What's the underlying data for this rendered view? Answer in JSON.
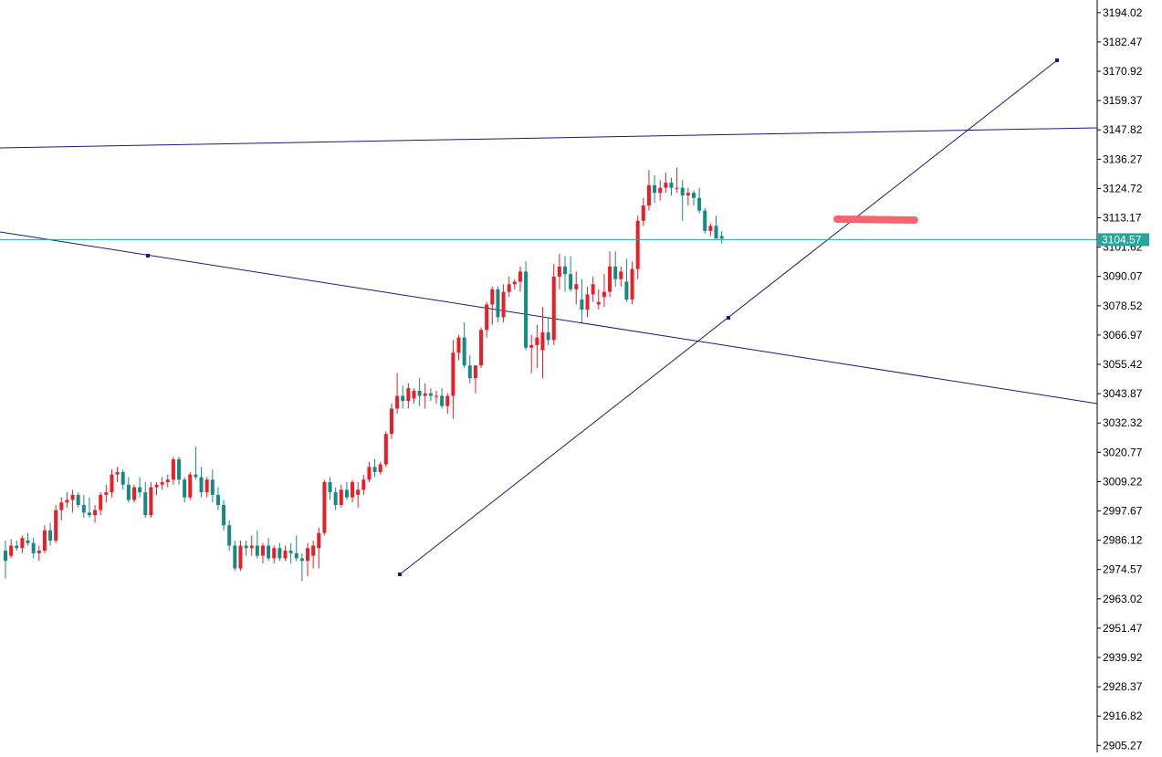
{
  "chart_data": {
    "type": "candlestick",
    "y_ticks": [
      "3194.02",
      "3182.47",
      "3170.92",
      "3159.37",
      "3147.82",
      "3136.27",
      "3124.72",
      "3113.17",
      "3101.62",
      "3090.07",
      "3078.52",
      "3066.97",
      "3055.42",
      "3043.87",
      "3032.32",
      "3020.77",
      "3009.22",
      "2997.67",
      "2986.12",
      "2974.57",
      "2963.02",
      "2951.47",
      "2939.92",
      "2928.37",
      "2916.82",
      "2905.27"
    ],
    "ylim": [
      2902.5,
      3199.0
    ],
    "current_price": "3104.57",
    "grid": false,
    "colors": {
      "bull": "#ee1c24",
      "bear": "#138a82",
      "trendline": "#1a1a7a",
      "price_line": "#2ba5a5",
      "price_tag": "#26a69a",
      "annotation": "#f8636f",
      "axis": "#000000"
    },
    "candles": [
      [
        2982.0,
        2986.0,
        2971.0,
        2978.0
      ],
      [
        2980.0,
        2986.5,
        2979.0,
        2984.0
      ],
      [
        2984.0,
        2986.0,
        2982.0,
        2983.0
      ],
      [
        2983.0,
        2988.0,
        2981.0,
        2987.0
      ],
      [
        2986.0,
        2989.0,
        2984.0,
        2985.0
      ],
      [
        2985.0,
        2987.0,
        2979.0,
        2981.0
      ],
      [
        2981.0,
        2984.0,
        2978.0,
        2982.0
      ],
      [
        2982.0,
        2992.0,
        2981.0,
        2990.0
      ],
      [
        2990.0,
        2993.0,
        2984.0,
        2986.0
      ],
      [
        2986.0,
        3000.0,
        2985.0,
        2998.0
      ],
      [
        2998.0,
        3003.0,
        2994.0,
        3001.0
      ],
      [
        3001.0,
        3005.0,
        2999.0,
        3002.0
      ],
      [
        3002.0,
        3006.0,
        2997.0,
        3004.0
      ],
      [
        3004.0,
        3005.0,
        2999.0,
        3000.0
      ],
      [
        3000.0,
        3004.0,
        2995.0,
        2997.0
      ],
      [
        2997.0,
        3003.0,
        2995.0,
        2996.0
      ],
      [
        2996.0,
        3000.0,
        2993.0,
        2998.0
      ],
      [
        2998.0,
        3005.0,
        2996.0,
        3004.0
      ],
      [
        3004.0,
        3008.0,
        3001.0,
        3005.0
      ],
      [
        3005.0,
        3014.0,
        3003.0,
        3012.0
      ],
      [
        3012.0,
        3015.0,
        3009.0,
        3013.0
      ],
      [
        3013.0,
        3014.0,
        3006.0,
        3008.0
      ],
      [
        3008.0,
        3011.0,
        3001.0,
        3002.0
      ],
      [
        3002.0,
        3008.0,
        3001.0,
        3007.0
      ],
      [
        3007.0,
        3011.0,
        3003.0,
        3005.0
      ],
      [
        3005.0,
        3009.0,
        2995.0,
        2996.0
      ],
      [
        2996.0,
        3009.0,
        2995.0,
        3007.0
      ],
      [
        3007.0,
        3009.0,
        3004.0,
        3008.0
      ],
      [
        3008.0,
        3011.0,
        3006.0,
        3009.0
      ],
      [
        3009.0,
        3012.0,
        3007.0,
        3010.0
      ],
      [
        3010.0,
        3019.0,
        3008.0,
        3018.0
      ],
      [
        3018.0,
        3019.0,
        3008.0,
        3010.0
      ],
      [
        3010.0,
        3011.0,
        3001.0,
        3003.0
      ],
      [
        3003.0,
        3013.0,
        3002.0,
        3012.0
      ],
      [
        3012.0,
        3023.0,
        3010.0,
        3011.0
      ],
      [
        3011.0,
        3015.0,
        3003.0,
        3005.0
      ],
      [
        3005.0,
        3011.0,
        3003.0,
        3010.0
      ],
      [
        3010.0,
        3014.0,
        3001.0,
        3004.0
      ],
      [
        3004.0,
        3007.0,
        2998.0,
        3000.0
      ],
      [
        3000.0,
        3002.0,
        2990.0,
        2992.0
      ],
      [
        2992.0,
        2994.0,
        2982.0,
        2984.0
      ],
      [
        2984.0,
        2986.0,
        2974.0,
        2975.0
      ],
      [
        2975.0,
        2986.0,
        2974.0,
        2984.0
      ],
      [
        2984.0,
        2986.0,
        2980.0,
        2983.0
      ],
      [
        2983.0,
        2988.0,
        2980.0,
        2984.0
      ],
      [
        2984.0,
        2990.0,
        2979.0,
        2980.0
      ],
      [
        2980.0,
        2985.0,
        2977.0,
        2984.0
      ],
      [
        2984.0,
        2987.0,
        2978.0,
        2979.0
      ],
      [
        2979.0,
        2984.0,
        2977.0,
        2983.0
      ],
      [
        2983.0,
        2985.0,
        2978.0,
        2979.0
      ],
      [
        2979.0,
        2984.0,
        2978.0,
        2982.0
      ],
      [
        2982.0,
        2985.0,
        2977.0,
        2981.0
      ],
      [
        2981.0,
        2988.0,
        2978.0,
        2979.0
      ],
      [
        2979.0,
        2981.0,
        2970.0,
        2978.0
      ],
      [
        2978.0,
        2985.0,
        2972.0,
        2983.0
      ],
      [
        2980.0,
        2986.0,
        2975.0,
        2984.0
      ],
      [
        2983.0,
        2991.0,
        2975.0,
        2989.0
      ],
      [
        2989.0,
        3010.0,
        2988.0,
        3009.0
      ],
      [
        3009.0,
        3011.0,
        3002.0,
        3005.0
      ],
      [
        3005.0,
        3007.0,
        2998.0,
        3000.0
      ],
      [
        3000.0,
        3008.0,
        2999.0,
        3006.0
      ],
      [
        3006.0,
        3009.0,
        3002.0,
        3003.0
      ],
      [
        3003.0,
        3010.0,
        3001.0,
        3009.0
      ],
      [
        3004.0,
        3009.0,
        2999.0,
        3006.0
      ],
      [
        3006.0,
        3012.0,
        3004.0,
        3010.0
      ],
      [
        3010.0,
        3017.0,
        3009.0,
        3015.0
      ],
      [
        3015.0,
        3018.0,
        3011.0,
        3013.0
      ],
      [
        3013.0,
        3017.0,
        3012.0,
        3016.0
      ],
      [
        3016.0,
        3029.0,
        3015.0,
        3028.0
      ],
      [
        3028.0,
        3040.0,
        3026.0,
        3038.0
      ],
      [
        3038.0,
        3052.0,
        3036.0,
        3043.0
      ],
      [
        3043.0,
        3047.0,
        3038.0,
        3041.0
      ],
      [
        3041.0,
        3048.0,
        3038.0,
        3046.0
      ],
      [
        3042.0,
        3046.0,
        3040.0,
        3045.0
      ],
      [
        3045.0,
        3050.0,
        3039.0,
        3043.0
      ],
      [
        3043.0,
        3048.0,
        3038.0,
        3044.0
      ],
      [
        3044.0,
        3046.0,
        3041.0,
        3043.0
      ],
      [
        3043.0,
        3045.0,
        3040.0,
        3043.0
      ],
      [
        3043.0,
        3046.0,
        3038.0,
        3039.0
      ],
      [
        3039.0,
        3044.0,
        3036.0,
        3043.0
      ],
      [
        3043.0,
        3065.0,
        3034.0,
        3060.0
      ],
      [
        3060.0,
        3067.0,
        3057.0,
        3066.0
      ],
      [
        3066.0,
        3072.0,
        3054.0,
        3055.0
      ],
      [
        3055.0,
        3059.0,
        3048.0,
        3050.0
      ],
      [
        3050.0,
        3055.0,
        3044.0,
        3055.0
      ],
      [
        3055.0,
        3070.0,
        3054.0,
        3069.0
      ],
      [
        3069.0,
        3080.0,
        3066.0,
        3079.0
      ],
      [
        3079.0,
        3086.0,
        3071.0,
        3085.0
      ],
      [
        3085.0,
        3086.0,
        3072.0,
        3074.0
      ],
      [
        3074.0,
        3087.0,
        3072.0,
        3084.0
      ],
      [
        3084.0,
        3090.0,
        3082.0,
        3087.0
      ],
      [
        3087.0,
        3089.0,
        3085.0,
        3088.0
      ],
      [
        3088.0,
        3094.0,
        3084.0,
        3092.0
      ],
      [
        3092.0,
        3096.0,
        3061.0,
        3062.0
      ],
      [
        3062.0,
        3067.0,
        3052.0,
        3063.0
      ],
      [
        3063.0,
        3071.0,
        3054.0,
        3066.0
      ],
      [
        3061.0,
        3078.0,
        3050.0,
        3068.0
      ],
      [
        3068.0,
        3074.0,
        3063.0,
        3065.0
      ],
      [
        3065.0,
        3095.0,
        3063.0,
        3090.0
      ],
      [
        3090.0,
        3099.0,
        3085.0,
        3094.0
      ],
      [
        3094.0,
        3098.0,
        3084.0,
        3091.0
      ],
      [
        3091.0,
        3098.0,
        3084.0,
        3085.0
      ],
      [
        3085.0,
        3092.0,
        3079.0,
        3087.0
      ],
      [
        3081.0,
        3089.0,
        3072.0,
        3077.0
      ],
      [
        3077.0,
        3086.0,
        3074.0,
        3083.0
      ],
      [
        3083.0,
        3090.0,
        3080.0,
        3087.0
      ],
      [
        3079.0,
        3085.0,
        3077.0,
        3080.0
      ],
      [
        3082.0,
        3091.0,
        3078.0,
        3084.0
      ],
      [
        3084.0,
        3100.0,
        3082.0,
        3094.0
      ],
      [
        3094.0,
        3100.0,
        3086.0,
        3089.0
      ],
      [
        3089.0,
        3094.0,
        3086.0,
        3092.0
      ],
      [
        3088.0,
        3097.0,
        3080.0,
        3081.0
      ],
      [
        3081.0,
        3096.0,
        3079.0,
        3093.0
      ],
      [
        3093.0,
        3114.0,
        3089.0,
        3112.0
      ],
      [
        3112.0,
        3121.0,
        3110.0,
        3118.0
      ],
      [
        3118.0,
        3132.0,
        3116.0,
        3126.0
      ],
      [
        3126.0,
        3130.0,
        3119.0,
        3123.0
      ],
      [
        3123.0,
        3128.0,
        3120.0,
        3125.0
      ],
      [
        3125.0,
        3131.0,
        3123.0,
        3127.0
      ],
      [
        3127.0,
        3129.0,
        3122.0,
        3125.0
      ],
      [
        3125.0,
        3133.0,
        3123.0,
        3125.0
      ],
      [
        3125.0,
        3128.0,
        3112.0,
        3122.0
      ],
      [
        3122.0,
        3125.0,
        3118.0,
        3123.0
      ],
      [
        3123.0,
        3124.0,
        3118.0,
        3121.0
      ],
      [
        3121.0,
        3125.0,
        3115.0,
        3116.0
      ],
      [
        3116.0,
        3117.0,
        3107.0,
        3108.0
      ],
      [
        3108.0,
        3111.0,
        3106.0,
        3110.0
      ],
      [
        3110.0,
        3114.0,
        3105.0,
        3105.0
      ],
      [
        3106.0,
        3108.0,
        3103.0,
        3105.0
      ]
    ]
  }
}
